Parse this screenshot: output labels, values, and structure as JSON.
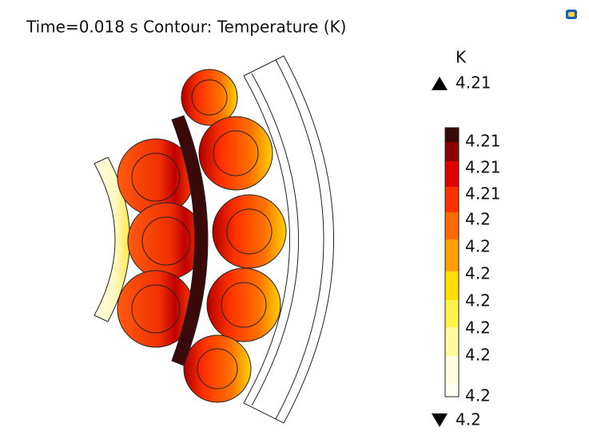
{
  "header": {
    "title": "Time=0.018 s  Contour: Temperature (K)"
  },
  "legend": {
    "unit": "K",
    "max_label": "4.21",
    "min_label": "4.2",
    "tick_labels": [
      "4.21",
      "4.21",
      "4.21",
      "4.2",
      "4.2",
      "4.2",
      "4.2",
      "4.2",
      "4.2",
      "4.2"
    ]
  }
}
